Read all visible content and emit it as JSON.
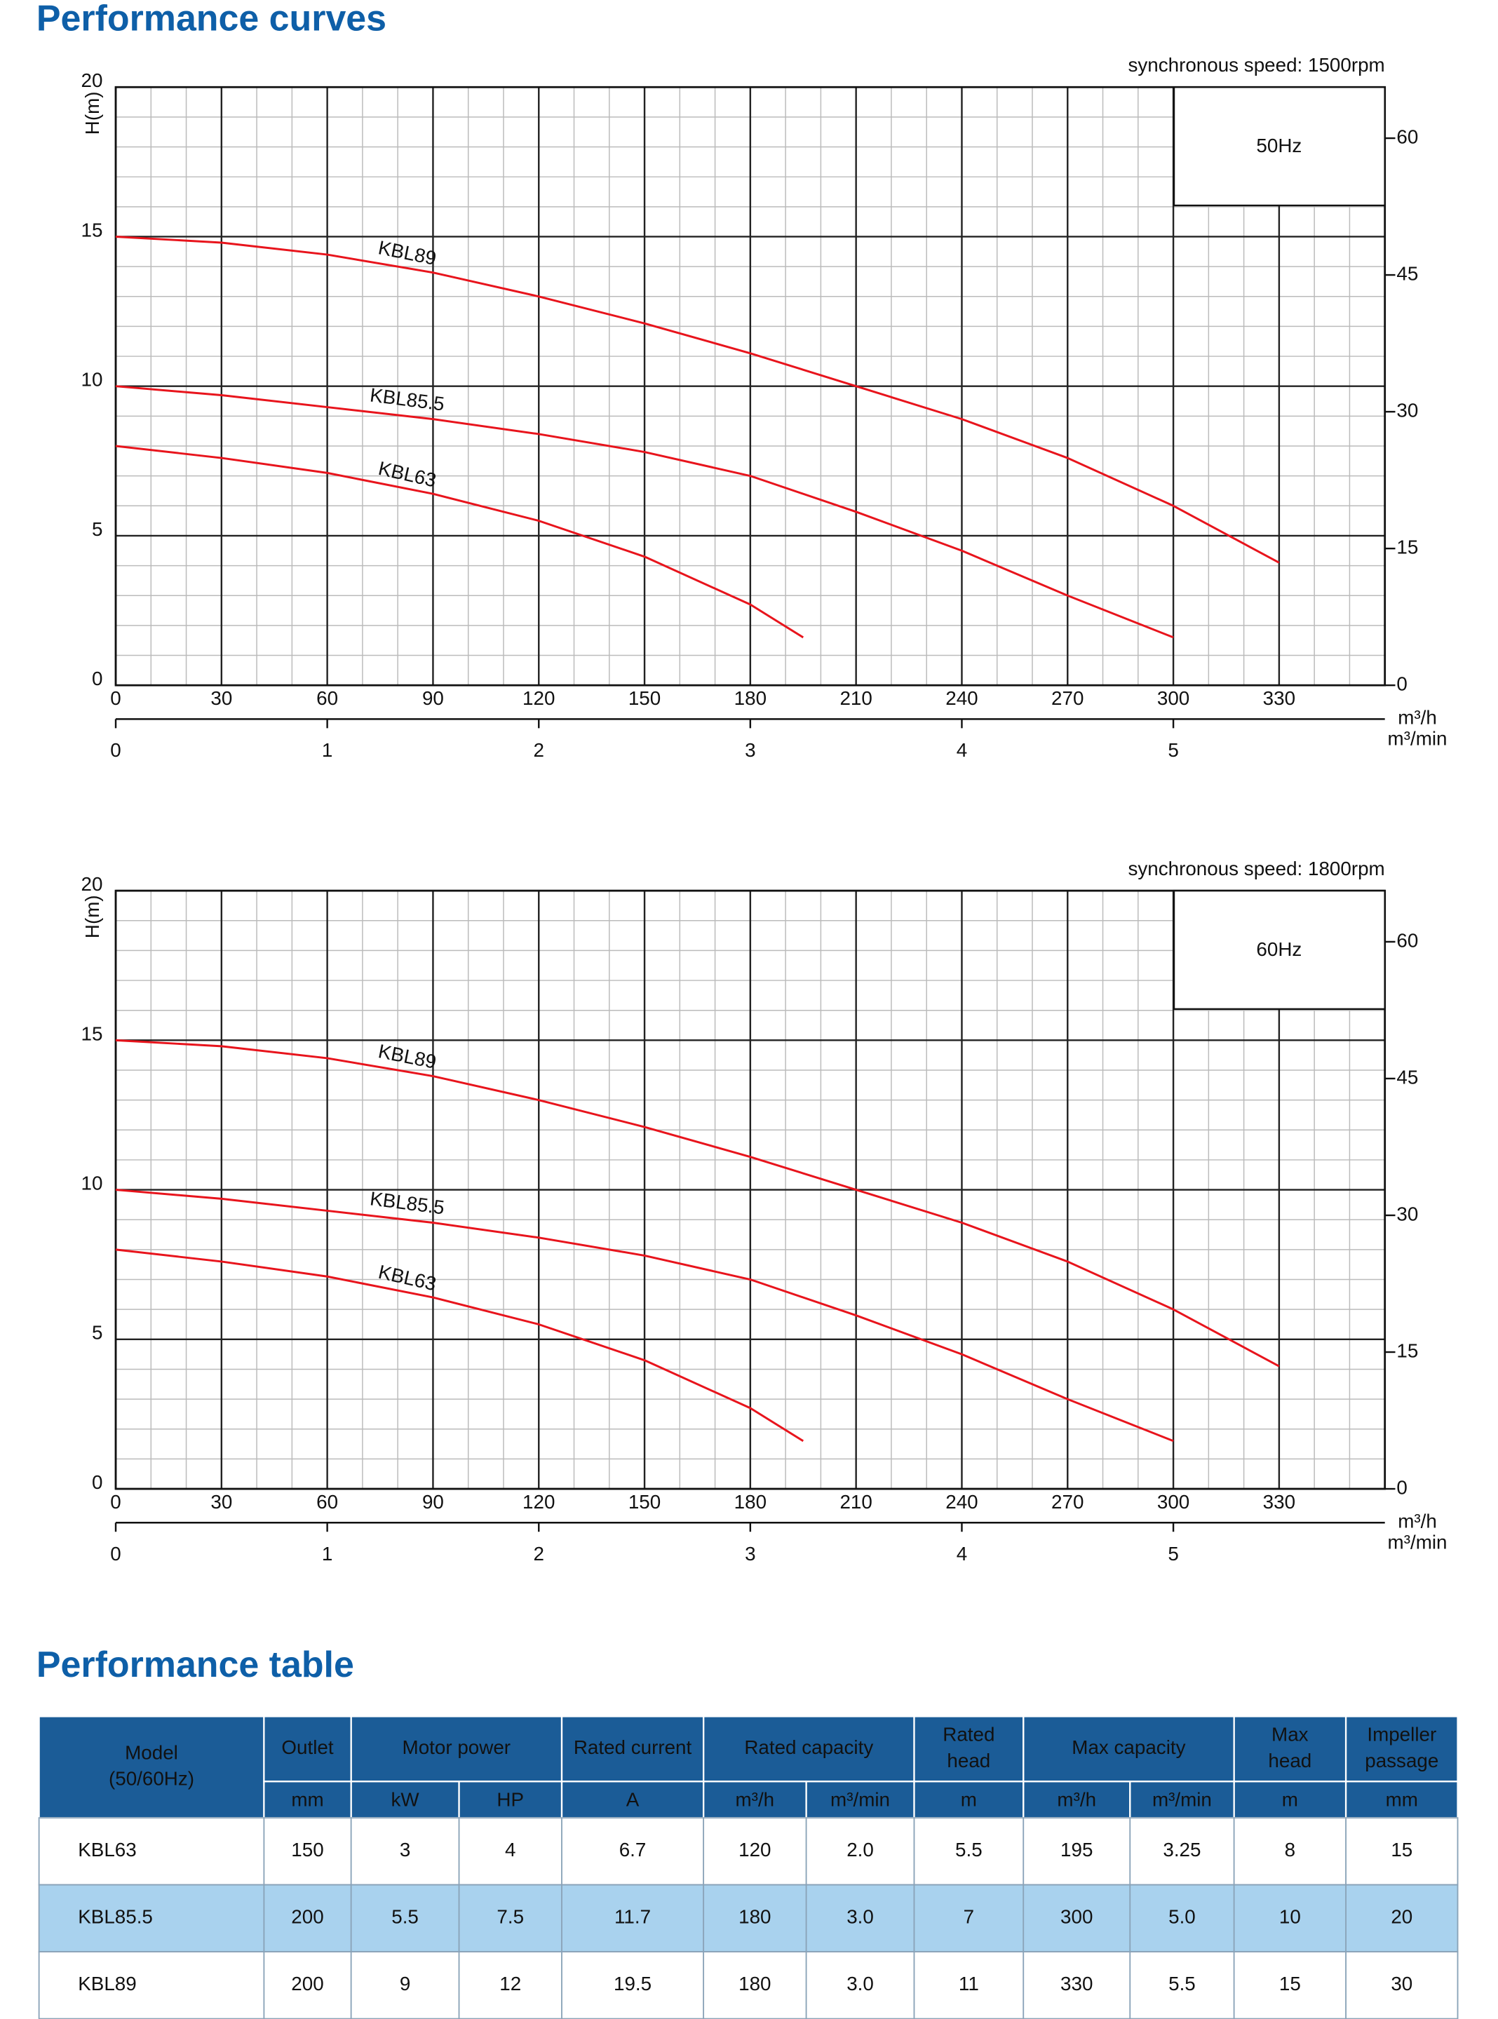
{
  "header": {
    "title": "Performance curves"
  },
  "chart_data": [
    {
      "type": "line",
      "subtitle": "synchronous speed: 1500rpm",
      "annotation": "50Hz",
      "ylabel": "H(m)",
      "xlabel": "m³/h",
      "x2label": "m³/min",
      "xlim": [
        0,
        360
      ],
      "xticks": [
        0,
        30,
        60,
        90,
        120,
        150,
        180,
        210,
        240,
        270,
        300,
        330
      ],
      "x2lim": [
        0,
        6
      ],
      "x2ticks": [
        0,
        1,
        2,
        3,
        4,
        5
      ],
      "ylim": [
        0,
        20
      ],
      "yticks": [
        0,
        5,
        10,
        15,
        20
      ],
      "y2lim": [
        0,
        65.6
      ],
      "y2ticks": [
        0,
        15,
        30,
        45,
        60
      ],
      "grid": true,
      "series": [
        {
          "name": "KBL89",
          "color": "#e8141c",
          "x": [
            0,
            30,
            60,
            90,
            120,
            150,
            180,
            210,
            240,
            270,
            300,
            330
          ],
          "values": [
            15,
            14.8,
            14.4,
            13.8,
            13.0,
            12.1,
            11.1,
            10.0,
            8.9,
            7.6,
            6.0,
            4.1
          ]
        },
        {
          "name": "KBL85.5",
          "color": "#e8141c",
          "x": [
            0,
            30,
            60,
            90,
            120,
            150,
            180,
            210,
            240,
            270,
            300
          ],
          "values": [
            10,
            9.7,
            9.3,
            8.9,
            8.4,
            7.8,
            7.0,
            5.8,
            4.5,
            3.0,
            1.6
          ]
        },
        {
          "name": "KBL63",
          "color": "#e8141c",
          "x": [
            0,
            30,
            60,
            90,
            120,
            150,
            180,
            195
          ],
          "values": [
            8,
            7.6,
            7.1,
            6.4,
            5.5,
            4.3,
            2.7,
            1.6
          ]
        }
      ]
    },
    {
      "type": "line",
      "subtitle": "synchronous speed: 1800rpm",
      "annotation": "60Hz",
      "ylabel": "H(m)",
      "xlabel": "m³/h",
      "x2label": "m³/min",
      "xlim": [
        0,
        360
      ],
      "xticks": [
        0,
        30,
        60,
        90,
        120,
        150,
        180,
        210,
        240,
        270,
        300,
        330
      ],
      "x2lim": [
        0,
        6
      ],
      "x2ticks": [
        0,
        1,
        2,
        3,
        4,
        5
      ],
      "ylim": [
        0,
        20
      ],
      "yticks": [
        0,
        5,
        10,
        15,
        20
      ],
      "y2lim": [
        0,
        65.6
      ],
      "y2ticks": [
        0,
        15,
        30,
        45,
        60
      ],
      "grid": true,
      "series": [
        {
          "name": "KBL89",
          "color": "#e8141c",
          "x": [
            0,
            30,
            60,
            90,
            120,
            150,
            180,
            210,
            240,
            270,
            300,
            330
          ],
          "values": [
            15,
            14.8,
            14.4,
            13.8,
            13.0,
            12.1,
            11.1,
            10.0,
            8.9,
            7.6,
            6.0,
            4.1
          ]
        },
        {
          "name": "KBL85.5",
          "color": "#e8141c",
          "x": [
            0,
            30,
            60,
            90,
            120,
            150,
            180,
            210,
            240,
            270,
            300
          ],
          "values": [
            10,
            9.7,
            9.3,
            8.9,
            8.4,
            7.8,
            7.0,
            5.8,
            4.5,
            3.0,
            1.6
          ]
        },
        {
          "name": "KBL63",
          "color": "#e8141c",
          "x": [
            0,
            30,
            60,
            90,
            120,
            150,
            180,
            195
          ],
          "values": [
            8,
            7.6,
            7.1,
            6.4,
            5.5,
            4.3,
            2.7,
            1.6
          ]
        }
      ]
    }
  ],
  "table": {
    "title": "Performance table",
    "groups": [
      {
        "lines": [
          "Model",
          "(50/60Hz)"
        ],
        "units": []
      },
      {
        "lines": [
          "Outlet"
        ],
        "units": [
          "mm"
        ]
      },
      {
        "lines": [
          "Motor power"
        ],
        "units": [
          "kW",
          "HP"
        ]
      },
      {
        "lines": [
          "Rated current"
        ],
        "units": [
          "A"
        ]
      },
      {
        "lines": [
          "Rated capacity"
        ],
        "units": [
          "m³/h",
          "m³/min"
        ]
      },
      {
        "lines": [
          "Rated",
          "head"
        ],
        "units": [
          "m"
        ]
      },
      {
        "lines": [
          "Max capacity"
        ],
        "units": [
          "m³/h",
          "m³/min"
        ]
      },
      {
        "lines": [
          "Max",
          "head"
        ],
        "units": [
          "m"
        ]
      },
      {
        "lines": [
          "Impeller",
          "passage"
        ],
        "units": [
          "mm"
        ]
      }
    ],
    "rows": [
      [
        "KBL63",
        "150",
        "3",
        "4",
        "6.7",
        "120",
        "2.0",
        "5.5",
        "195",
        "3.25",
        "8",
        "15"
      ],
      [
        "KBL85.5",
        "200",
        "5.5",
        "7.5",
        "11.7",
        "180",
        "3.0",
        "7",
        "300",
        "5.0",
        "10",
        "20"
      ],
      [
        "KBL89",
        "200",
        "9",
        "12",
        "19.5",
        "180",
        "3.0",
        "11",
        "330",
        "5.5",
        "15",
        "30"
      ]
    ]
  }
}
